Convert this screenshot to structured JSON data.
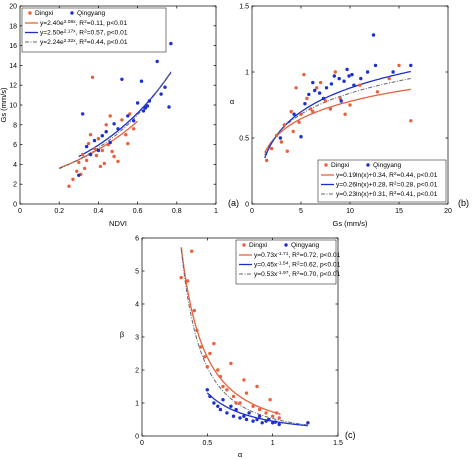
{
  "colors": {
    "dingxi": "#e8613c",
    "qingyang": "#1c2fcf",
    "combined": "#666666",
    "axis": "#000000"
  },
  "chart_data": [
    {
      "type": "scatter",
      "panel_label": "(a)",
      "xlabel": "NDVI",
      "ylabel": "Gs (mm/s)",
      "xlim": [
        0,
        1
      ],
      "ylim": [
        0,
        20
      ],
      "xticks": [
        "0",
        "0.2",
        "0.4",
        "0.6",
        "0.8",
        "1"
      ],
      "yticks": [
        "0",
        "2",
        "4",
        "6",
        "8",
        "10",
        "12",
        "14",
        "16",
        "18",
        "20"
      ],
      "xtick_values": [
        0,
        0.2,
        0.4,
        0.6,
        0.8,
        1
      ],
      "ytick_values": [
        0,
        2,
        4,
        6,
        8,
        10,
        12,
        14,
        16,
        18,
        20
      ],
      "legend_position": "top-left",
      "series": [
        {
          "name": "Dingxi",
          "color_key": "dingxi",
          "points": [
            [
              0.25,
              1.8
            ],
            [
              0.27,
              2.5
            ],
            [
              0.29,
              3.3
            ],
            [
              0.3,
              4.2
            ],
            [
              0.31,
              3.0
            ],
            [
              0.32,
              5.0
            ],
            [
              0.33,
              3.6
            ],
            [
              0.34,
              4.4
            ],
            [
              0.35,
              6.1
            ],
            [
              0.36,
              7.0
            ],
            [
              0.37,
              12.8
            ],
            [
              0.38,
              5.6
            ],
            [
              0.39,
              4.9
            ],
            [
              0.4,
              6.6
            ],
            [
              0.41,
              3.8
            ],
            [
              0.42,
              5.4
            ],
            [
              0.43,
              4.1
            ],
            [
              0.44,
              8.0
            ],
            [
              0.45,
              6.0
            ],
            [
              0.46,
              8.9
            ],
            [
              0.47,
              5.3
            ],
            [
              0.48,
              4.8
            ],
            [
              0.5,
              4.3
            ],
            [
              0.52,
              8.5
            ],
            [
              0.54,
              7.0
            ],
            [
              0.55,
              6.1
            ],
            [
              0.56,
              9.1
            ],
            [
              0.58,
              7.6
            ]
          ]
        },
        {
          "name": "Qingyang",
          "color_key": "qingyang",
          "points": [
            [
              0.3,
              2.9
            ],
            [
              0.32,
              9.1
            ],
            [
              0.34,
              5.8
            ],
            [
              0.36,
              5.0
            ],
            [
              0.38,
              6.4
            ],
            [
              0.4,
              5.4
            ],
            [
              0.42,
              6.9
            ],
            [
              0.44,
              7.3
            ],
            [
              0.46,
              6.2
            ],
            [
              0.48,
              8.1
            ],
            [
              0.5,
              7.6
            ],
            [
              0.52,
              12.6
            ],
            [
              0.55,
              8.9
            ],
            [
              0.58,
              8.4
            ],
            [
              0.6,
              10.2
            ],
            [
              0.62,
              12.4
            ],
            [
              0.63,
              9.4
            ],
            [
              0.64,
              9.7
            ],
            [
              0.65,
              9.9
            ],
            [
              0.66,
              10.4
            ],
            [
              0.7,
              14.4
            ],
            [
              0.72,
              11.1
            ],
            [
              0.74,
              11.8
            ],
            [
              0.76,
              9.8
            ],
            [
              0.77,
              16.2
            ]
          ]
        }
      ],
      "fits": [
        {
          "label": "y=2.40e$2.08x$, R$2$=0.11, p<0.01",
          "color_key": "dingxi",
          "style": "solid",
          "a": 2.4,
          "b": 2.08,
          "x_range": [
            0.2,
            0.6
          ]
        },
        {
          "label": "y=2.50e$2.17x$, R$2$=0.57, p<0.01",
          "color_key": "qingyang",
          "style": "solid",
          "a": 2.5,
          "b": 2.17,
          "x_range": [
            0.3,
            0.77
          ]
        },
        {
          "label": "y=2.24e$2.32x$, R$2$=0.44, p<0.01",
          "color_key": "combined",
          "style": "dashdot",
          "a": 2.24,
          "b": 2.32,
          "x_range": [
            0.2,
            0.77
          ]
        }
      ]
    },
    {
      "type": "scatter",
      "panel_label": "(b)",
      "xlabel": "Gs (mm/s)",
      "ylabel": "α",
      "xlim": [
        0,
        20
      ],
      "ylim": [
        0,
        1.5
      ],
      "xticks": [
        "0",
        "5",
        "10",
        "15",
        "20"
      ],
      "yticks": [
        "0",
        "0.5",
        "1",
        "1.5"
      ],
      "xtick_values": [
        0,
        5,
        10,
        15,
        20
      ],
      "ytick_values": [
        0,
        0.5,
        1,
        1.5
      ],
      "legend_position": "bottom-right",
      "series": [
        {
          "name": "Dingxi",
          "color_key": "dingxi",
          "points": [
            [
              1.5,
              0.33
            ],
            [
              2.0,
              0.42
            ],
            [
              2.5,
              0.52
            ],
            [
              3.0,
              0.47
            ],
            [
              3.3,
              0.6
            ],
            [
              3.6,
              0.4
            ],
            [
              4.0,
              0.7
            ],
            [
              4.2,
              0.55
            ],
            [
              4.5,
              0.88
            ],
            [
              4.8,
              0.62
            ],
            [
              5.0,
              0.68
            ],
            [
              5.3,
              0.98
            ],
            [
              5.6,
              0.8
            ],
            [
              6.0,
              0.72
            ],
            [
              6.2,
              0.7
            ],
            [
              6.6,
              0.88
            ],
            [
              7.0,
              0.92
            ],
            [
              7.5,
              0.78
            ],
            [
              8.0,
              0.72
            ],
            [
              8.5,
              1.0
            ],
            [
              9.0,
              0.8
            ],
            [
              9.5,
              0.68
            ],
            [
              10.0,
              0.75
            ],
            [
              11.0,
              0.9
            ],
            [
              12.8,
              0.85
            ],
            [
              14.0,
              0.95
            ],
            [
              15.0,
              1.05
            ],
            [
              16.2,
              0.63
            ]
          ]
        },
        {
          "name": "Qingyang",
          "color_key": "qingyang",
          "points": [
            [
              2.9,
              0.5
            ],
            [
              4.3,
              0.68
            ],
            [
              5.0,
              0.51
            ],
            [
              5.4,
              0.76
            ],
            [
              5.8,
              0.83
            ],
            [
              6.2,
              0.92
            ],
            [
              6.4,
              0.86
            ],
            [
              6.9,
              0.84
            ],
            [
              7.3,
              0.8
            ],
            [
              7.6,
              0.88
            ],
            [
              8.1,
              0.91
            ],
            [
              8.4,
              0.97
            ],
            [
              8.9,
              0.95
            ],
            [
              9.1,
              0.78
            ],
            [
              9.4,
              0.93
            ],
            [
              9.7,
              1.02
            ],
            [
              9.9,
              0.97
            ],
            [
              10.2,
              0.98
            ],
            [
              10.4,
              0.9
            ],
            [
              11.1,
              0.95
            ],
            [
              11.8,
              1.0
            ],
            [
              12.4,
              1.28
            ],
            [
              12.6,
              1.05
            ],
            [
              14.4,
              1.0
            ],
            [
              16.2,
              1.05
            ]
          ]
        }
      ],
      "fits": [
        {
          "label": "y=0.19ln(x)+0.34, R$2$=0.44, p<0.01",
          "color_key": "dingxi",
          "style": "solid",
          "a": 0.19,
          "b": 0.34,
          "x_range": [
            1.3,
            16.2
          ]
        },
        {
          "label": "y=0.26ln(x)+0.28, R$2$=0.28, p<0.01",
          "color_key": "qingyang",
          "style": "solid",
          "a": 0.26,
          "b": 0.28,
          "x_range": [
            1.3,
            16.2
          ]
        },
        {
          "label": "y=0.23ln(x)+0.31, R$2$=0.41, p<0.01",
          "color_key": "combined",
          "style": "dashdot",
          "a": 0.23,
          "b": 0.31,
          "x_range": [
            1.3,
            16.2
          ]
        }
      ]
    },
    {
      "type": "scatter",
      "panel_label": "(c)",
      "xlabel": "α",
      "ylabel": "β",
      "xlim": [
        0,
        1.5
      ],
      "ylim": [
        0,
        6
      ],
      "xticks": [
        "0",
        "0.5",
        "1",
        "1.5"
      ],
      "yticks": [
        "0",
        "1",
        "2",
        "3",
        "4",
        "5",
        "6"
      ],
      "xtick_values": [
        0,
        0.5,
        1,
        1.5
      ],
      "ytick_values": [
        0,
        1,
        2,
        3,
        4,
        5,
        6
      ],
      "legend_position": "top-right",
      "series": [
        {
          "name": "Dingxi",
          "color_key": "dingxi",
          "points": [
            [
              0.3,
              4.8
            ],
            [
              0.35,
              4.7
            ],
            [
              0.38,
              5.6
            ],
            [
              0.4,
              3.8
            ],
            [
              0.42,
              3.2
            ],
            [
              0.45,
              2.7
            ],
            [
              0.48,
              2.4
            ],
            [
              0.5,
              2.1
            ],
            [
              0.52,
              2.5
            ],
            [
              0.55,
              2.8
            ],
            [
              0.58,
              2.0
            ],
            [
              0.6,
              1.8
            ],
            [
              0.62,
              1.5
            ],
            [
              0.65,
              1.4
            ],
            [
              0.68,
              2.2
            ],
            [
              0.7,
              1.2
            ],
            [
              0.72,
              1.0
            ],
            [
              0.75,
              1.0
            ],
            [
              0.78,
              1.7
            ],
            [
              0.8,
              1.3
            ],
            [
              0.85,
              0.9
            ],
            [
              0.88,
              1.5
            ],
            [
              0.9,
              0.8
            ],
            [
              0.95,
              0.7
            ],
            [
              0.98,
              1.1
            ],
            [
              1.0,
              0.6
            ],
            [
              1.03,
              0.7
            ],
            [
              1.05,
              0.55
            ]
          ]
        },
        {
          "name": "Qingyang",
          "color_key": "qingyang",
          "points": [
            [
              0.5,
              1.4
            ],
            [
              0.52,
              1.2
            ],
            [
              0.55,
              1.0
            ],
            [
              0.58,
              0.9
            ],
            [
              0.6,
              0.8
            ],
            [
              0.62,
              1.1
            ],
            [
              0.65,
              0.7
            ],
            [
              0.68,
              0.9
            ],
            [
              0.7,
              0.6
            ],
            [
              0.72,
              0.8
            ],
            [
              0.75,
              0.55
            ],
            [
              0.78,
              0.6
            ],
            [
              0.8,
              0.5
            ],
            [
              0.82,
              0.7
            ],
            [
              0.85,
              0.45
            ],
            [
              0.88,
              0.5
            ],
            [
              0.9,
              0.6
            ],
            [
              0.92,
              0.4
            ],
            [
              0.95,
              0.45
            ],
            [
              0.97,
              0.5
            ],
            [
              1.0,
              0.4
            ],
            [
              1.02,
              0.42
            ],
            [
              1.05,
              0.35
            ],
            [
              1.27,
              0.4
            ]
          ]
        }
      ],
      "fits": [
        {
          "label": "y=0.73x$-1.71$, R$2$=0.72, p<0.01",
          "color_key": "dingxi",
          "style": "solid",
          "a": 0.73,
          "b": -1.71,
          "x_range": [
            0.3,
            1.06
          ]
        },
        {
          "label": "y=0.45x$-1.54$, R$2$=0.62, p<0.01",
          "color_key": "qingyang",
          "style": "solid",
          "a": 0.45,
          "b": -1.54,
          "x_range": [
            0.5,
            1.27
          ]
        },
        {
          "label": "y=0.53x$-1.97$, R$2$=0.70, p<0.01",
          "color_key": "combined",
          "style": "dashdot",
          "a": 0.53,
          "b": -1.97,
          "x_range": [
            0.3,
            1.27
          ]
        }
      ]
    }
  ]
}
